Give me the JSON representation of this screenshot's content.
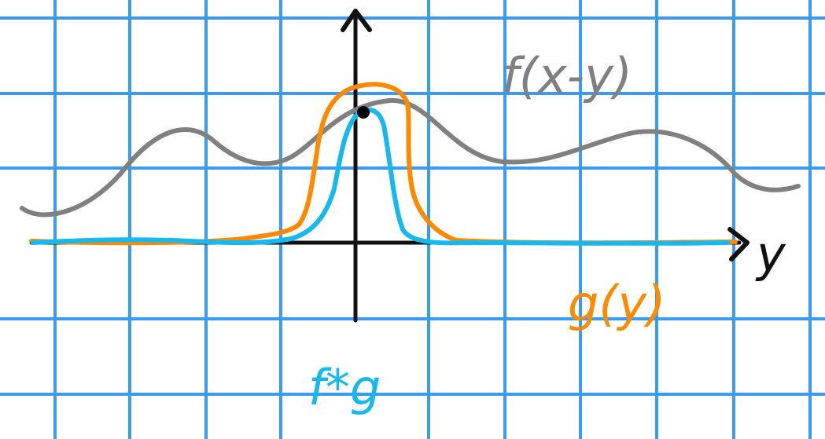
{
  "labels": {
    "f_shift": "f(x-y)",
    "g": "g(y)",
    "conv": "f*g",
    "axis_y": "y"
  },
  "colors": {
    "grid": "#3b9bf0",
    "axis": "#111111",
    "f_curve": "#808080",
    "g_curve": "#ff8a00",
    "conv_curve": "#16b8f0",
    "point": "#000000",
    "background": "#ffffff"
  }
}
